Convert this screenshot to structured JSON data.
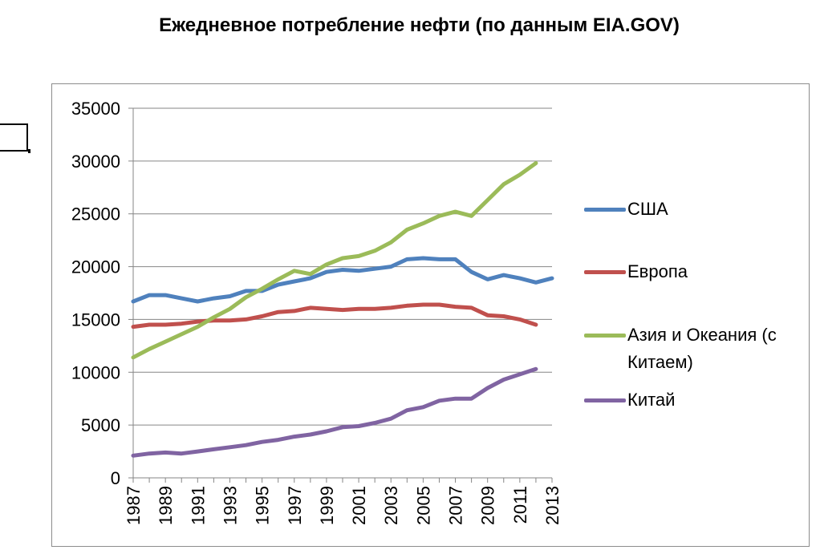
{
  "chart_data": {
    "type": "line",
    "title": "Ежедневное потребление нефти (по данным EIA.GOV)",
    "xlabel": "",
    "ylabel": "",
    "x": [
      1987,
      1988,
      1989,
      1990,
      1991,
      1992,
      1993,
      1994,
      1995,
      1996,
      1997,
      1998,
      1999,
      2000,
      2001,
      2002,
      2003,
      2004,
      2005,
      2006,
      2007,
      2008,
      2009,
      2010,
      2011,
      2012,
      2013
    ],
    "x_tick_labels": [
      "1987",
      "1989",
      "1991",
      "1993",
      "1995",
      "1997",
      "1999",
      "2001",
      "2003",
      "2005",
      "2007",
      "2009",
      "2011",
      "2013"
    ],
    "ylim": [
      0,
      35000
    ],
    "y_tick_labels": [
      "0",
      "5000",
      "10000",
      "15000",
      "20000",
      "25000",
      "30000",
      "35000"
    ],
    "grid": "horizontal",
    "legend_position": "right",
    "series": [
      {
        "name": "США",
        "color": "#4f81bd",
        "values": [
          16700,
          17300,
          17300,
          17000,
          16700,
          17000,
          17200,
          17700,
          17700,
          18300,
          18600,
          18900,
          19500,
          19700,
          19600,
          19800,
          20000,
          20700,
          20800,
          20700,
          20700,
          19500,
          18800,
          19200,
          18900,
          18500,
          18900
        ]
      },
      {
        "name": "Европа",
        "color": "#c0504d",
        "values": [
          14300,
          14500,
          14500,
          14600,
          14800,
          14900,
          14900,
          15000,
          15300,
          15700,
          15800,
          16100,
          16000,
          15900,
          16000,
          16000,
          16100,
          16300,
          16400,
          16400,
          16200,
          16100,
          15400,
          15300,
          15000,
          14500,
          null
        ]
      },
      {
        "name": "Азия и Океания (с Китаем)",
        "color": "#9bbb59",
        "values": [
          11400,
          12200,
          12900,
          13600,
          14300,
          15200,
          16000,
          17100,
          17900,
          18800,
          19600,
          19300,
          20200,
          20800,
          21000,
          21500,
          22300,
          23500,
          24100,
          24800,
          25200,
          24800,
          26300,
          27800,
          28700,
          29800,
          null
        ]
      },
      {
        "name": "Китай",
        "color": "#8064a2",
        "values": [
          2100,
          2300,
          2400,
          2300,
          2500,
          2700,
          2900,
          3100,
          3400,
          3600,
          3900,
          4100,
          4400,
          4800,
          4900,
          5200,
          5600,
          6400,
          6700,
          7300,
          7500,
          7500,
          8500,
          9300,
          9800,
          10300,
          null
        ]
      }
    ]
  }
}
